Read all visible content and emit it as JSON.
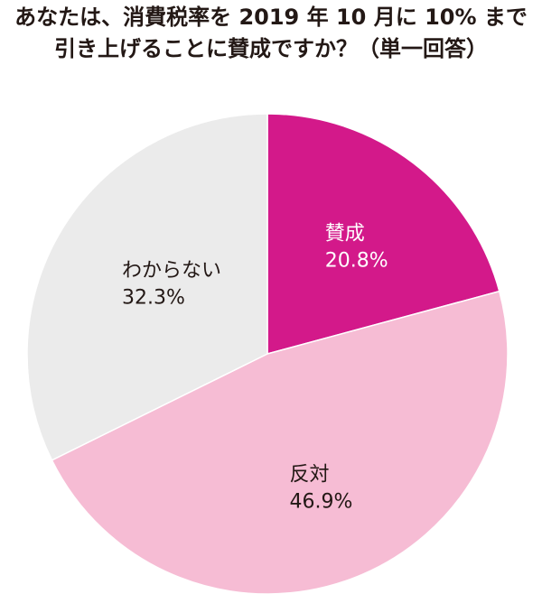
{
  "title_lines": [
    "あなたは、消費税率を 2019 年 10 月に 10% まで",
    "引き上げることに賛成ですか？（単一回答）"
  ],
  "chart_data": {
    "type": "pie",
    "title": "あなたは、消費税率を 2019 年 10 月に 10% まで引き上げることに賛成ですか？（単一回答）",
    "unit": "%",
    "slices": [
      {
        "label": "賛成",
        "value": 20.8,
        "display": "20.8%",
        "color": "#d3198a",
        "label_color": "#ffffff"
      },
      {
        "label": "反対",
        "value": 46.9,
        "display": "46.9%",
        "color": "#f6bcd4",
        "label_color": "#231815"
      },
      {
        "label": "わからない",
        "value": 32.3,
        "display": "32.3%",
        "color": "#ebebeb",
        "label_color": "#231815"
      }
    ],
    "start": "12 o'clock",
    "direction": "clockwise",
    "legend": "none",
    "slice_border_color": "#ffffff"
  }
}
